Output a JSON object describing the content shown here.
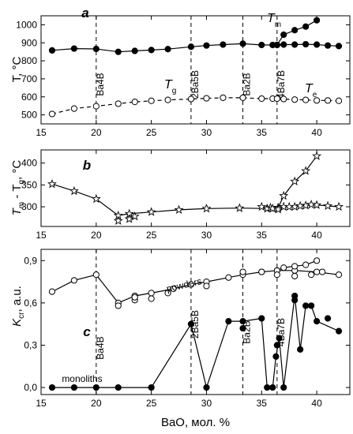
{
  "chart_data": [
    {
      "type": "line",
      "panel": "a",
      "ylabel": "T, °C",
      "xlim": [
        15,
        43
      ],
      "ylim": [
        450,
        1050
      ],
      "xticks": [
        15,
        20,
        25,
        30,
        35,
        40
      ],
      "yticks": [
        500,
        600,
        700,
        800,
        900,
        1000
      ],
      "annotations": {
        "t_m": {
          "main": "T",
          "sub": "m"
        },
        "t_e": {
          "main": "T",
          "sub": "e"
        },
        "t_g": {
          "main": "T",
          "sub": "g"
        }
      },
      "compositions": [
        {
          "label": "Ba4B",
          "x": 20
        },
        {
          "label": "2Ba5B",
          "x": 28.6
        },
        {
          "label": "Ba2B",
          "x": 33.3
        },
        {
          "label": "4Ba7B",
          "x": 36.4
        }
      ],
      "series": [
        {
          "marker": "filled",
          "line": "solid",
          "x": [
            16,
            18,
            20,
            22,
            23.5,
            25,
            26.5,
            28.6,
            30,
            31.5,
            33.3,
            35,
            36,
            36.4,
            37,
            38,
            39,
            40,
            41,
            42
          ],
          "y": [
            858,
            868,
            866,
            850,
            855,
            860,
            865,
            878,
            885,
            890,
            895,
            888,
            888,
            888,
            890,
            890,
            892,
            890,
            885,
            882
          ]
        },
        {
          "marker": "filled",
          "line": "solid",
          "x": [
            36.4,
            37,
            38,
            39,
            40
          ],
          "y": [
            888,
            945,
            970,
            990,
            1025
          ]
        },
        {
          "marker": "open",
          "line": "dashed",
          "x": [
            16,
            18,
            20,
            22,
            23.5,
            25,
            26.5,
            28.6,
            30,
            31.5,
            33.3,
            35,
            36,
            36.4,
            37,
            38,
            39,
            40,
            41,
            42
          ],
          "y": [
            505,
            535,
            548,
            562,
            572,
            578,
            583,
            588,
            592,
            595,
            595,
            590,
            590,
            590,
            588,
            585,
            583,
            580,
            580,
            578
          ]
        }
      ]
    },
    {
      "type": "scatter",
      "panel": "b",
      "ylabel": {
        "main": "T",
        "sub1": "m",
        "mid": " - T",
        "sub2": "g",
        "tail": ", °C"
      },
      "xlim": [
        15,
        43
      ],
      "ylim": [
        255,
        430
      ],
      "xticks": [
        15,
        20,
        25,
        30,
        35,
        40
      ],
      "yticks": [
        300,
        350,
        400
      ],
      "series": [
        {
          "marker": "star",
          "line": "solid",
          "x": [
            16,
            18,
            20,
            22,
            23,
            25,
            27.5,
            30,
            33,
            35.5,
            36.5,
            37,
            38,
            39,
            40
          ],
          "y": [
            352,
            336,
            318,
            280,
            284,
            288,
            293,
            296,
            297,
            296,
            298,
            325,
            358,
            382,
            416
          ]
        },
        {
          "marker": "star",
          "line": "solid",
          "x": [
            35.5,
            36.5,
            37,
            38,
            39,
            40,
            41,
            42
          ],
          "y": [
            296,
            298,
            300,
            300,
            303,
            304,
            302,
            300
          ]
        },
        {
          "marker": "star",
          "line": "none",
          "x": [
            22,
            23,
            23.5,
            35,
            35.8,
            36,
            36.5,
            37.5,
            38.5,
            39.5
          ],
          "y": [
            268,
            272,
            278,
            300,
            298,
            296,
            294,
            300,
            302,
            305
          ]
        }
      ]
    },
    {
      "type": "line",
      "panel": "c",
      "ylabel": {
        "main": "K",
        "sub": "cr",
        "tail": ", a.u."
      },
      "xlabel": "BaO, мол. %",
      "xlim": [
        15,
        43
      ],
      "ylim": [
        -0.05,
        0.98
      ],
      "xticks": [
        15,
        20,
        25,
        30,
        35,
        40
      ],
      "yticks": [
        0.0,
        0.3,
        0.6,
        0.9
      ],
      "ytick_labels": [
        "0,0",
        "0,3",
        "0,6",
        "0,9"
      ],
      "annotations": {
        "powders": "powders",
        "monoliths": "monoliths"
      },
      "compositions": [
        {
          "label": "Ba4B",
          "x": 20
        },
        {
          "label": "2Ba5B",
          "x": 28.6
        },
        {
          "label": "Ba2B",
          "x": 33.3
        },
        {
          "label": "4Ba7B",
          "x": 36.4
        }
      ],
      "series": [
        {
          "marker": "open",
          "line": "solid",
          "x": [
            16,
            18,
            20,
            22,
            23.5,
            25,
            27,
            28.6,
            30,
            32,
            33.3,
            35,
            36.4,
            38,
            40,
            42
          ],
          "y": [
            0.68,
            0.76,
            0.8,
            0.6,
            0.65,
            0.67,
            0.7,
            0.73,
            0.75,
            0.78,
            0.8,
            0.82,
            0.83,
            0.83,
            0.82,
            0.8
          ]
        },
        {
          "marker": "open",
          "line": "solid",
          "x": [
            36.4,
            37,
            38,
            39,
            40
          ],
          "y": [
            0.83,
            0.85,
            0.86,
            0.87,
            0.9
          ]
        },
        {
          "marker": "open",
          "line": "none",
          "x": [
            22,
            23.5,
            23.5,
            25,
            26.5,
            30,
            33.3,
            35,
            36.4,
            38,
            39.5,
            40.5
          ],
          "y": [
            0.58,
            0.62,
            0.64,
            0.63,
            0.67,
            0.72,
            0.82,
            0.82,
            0.8,
            0.79,
            0.8,
            0.82
          ]
        },
        {
          "marker": "filled",
          "line": "solid",
          "x": [
            16,
            18,
            20,
            22,
            25,
            28.6,
            30,
            32,
            33.3,
            35,
            35.5,
            36,
            36.3,
            36.6,
            37,
            38,
            38.5,
            39,
            39.5,
            40,
            42
          ],
          "y": [
            0.0,
            0.0,
            0.0,
            0.0,
            0.0,
            0.45,
            0.0,
            0.47,
            0.47,
            0.49,
            0.0,
            0.0,
            0.22,
            0.35,
            0.0,
            0.65,
            0.27,
            0.58,
            0.58,
            0.47,
            0.4
          ]
        },
        {
          "marker": "filled",
          "line": "none",
          "x": [
            33.3,
            36.4,
            38,
            41
          ],
          "y": [
            0.42,
            0.3,
            0.62,
            0.49
          ]
        }
      ]
    }
  ]
}
